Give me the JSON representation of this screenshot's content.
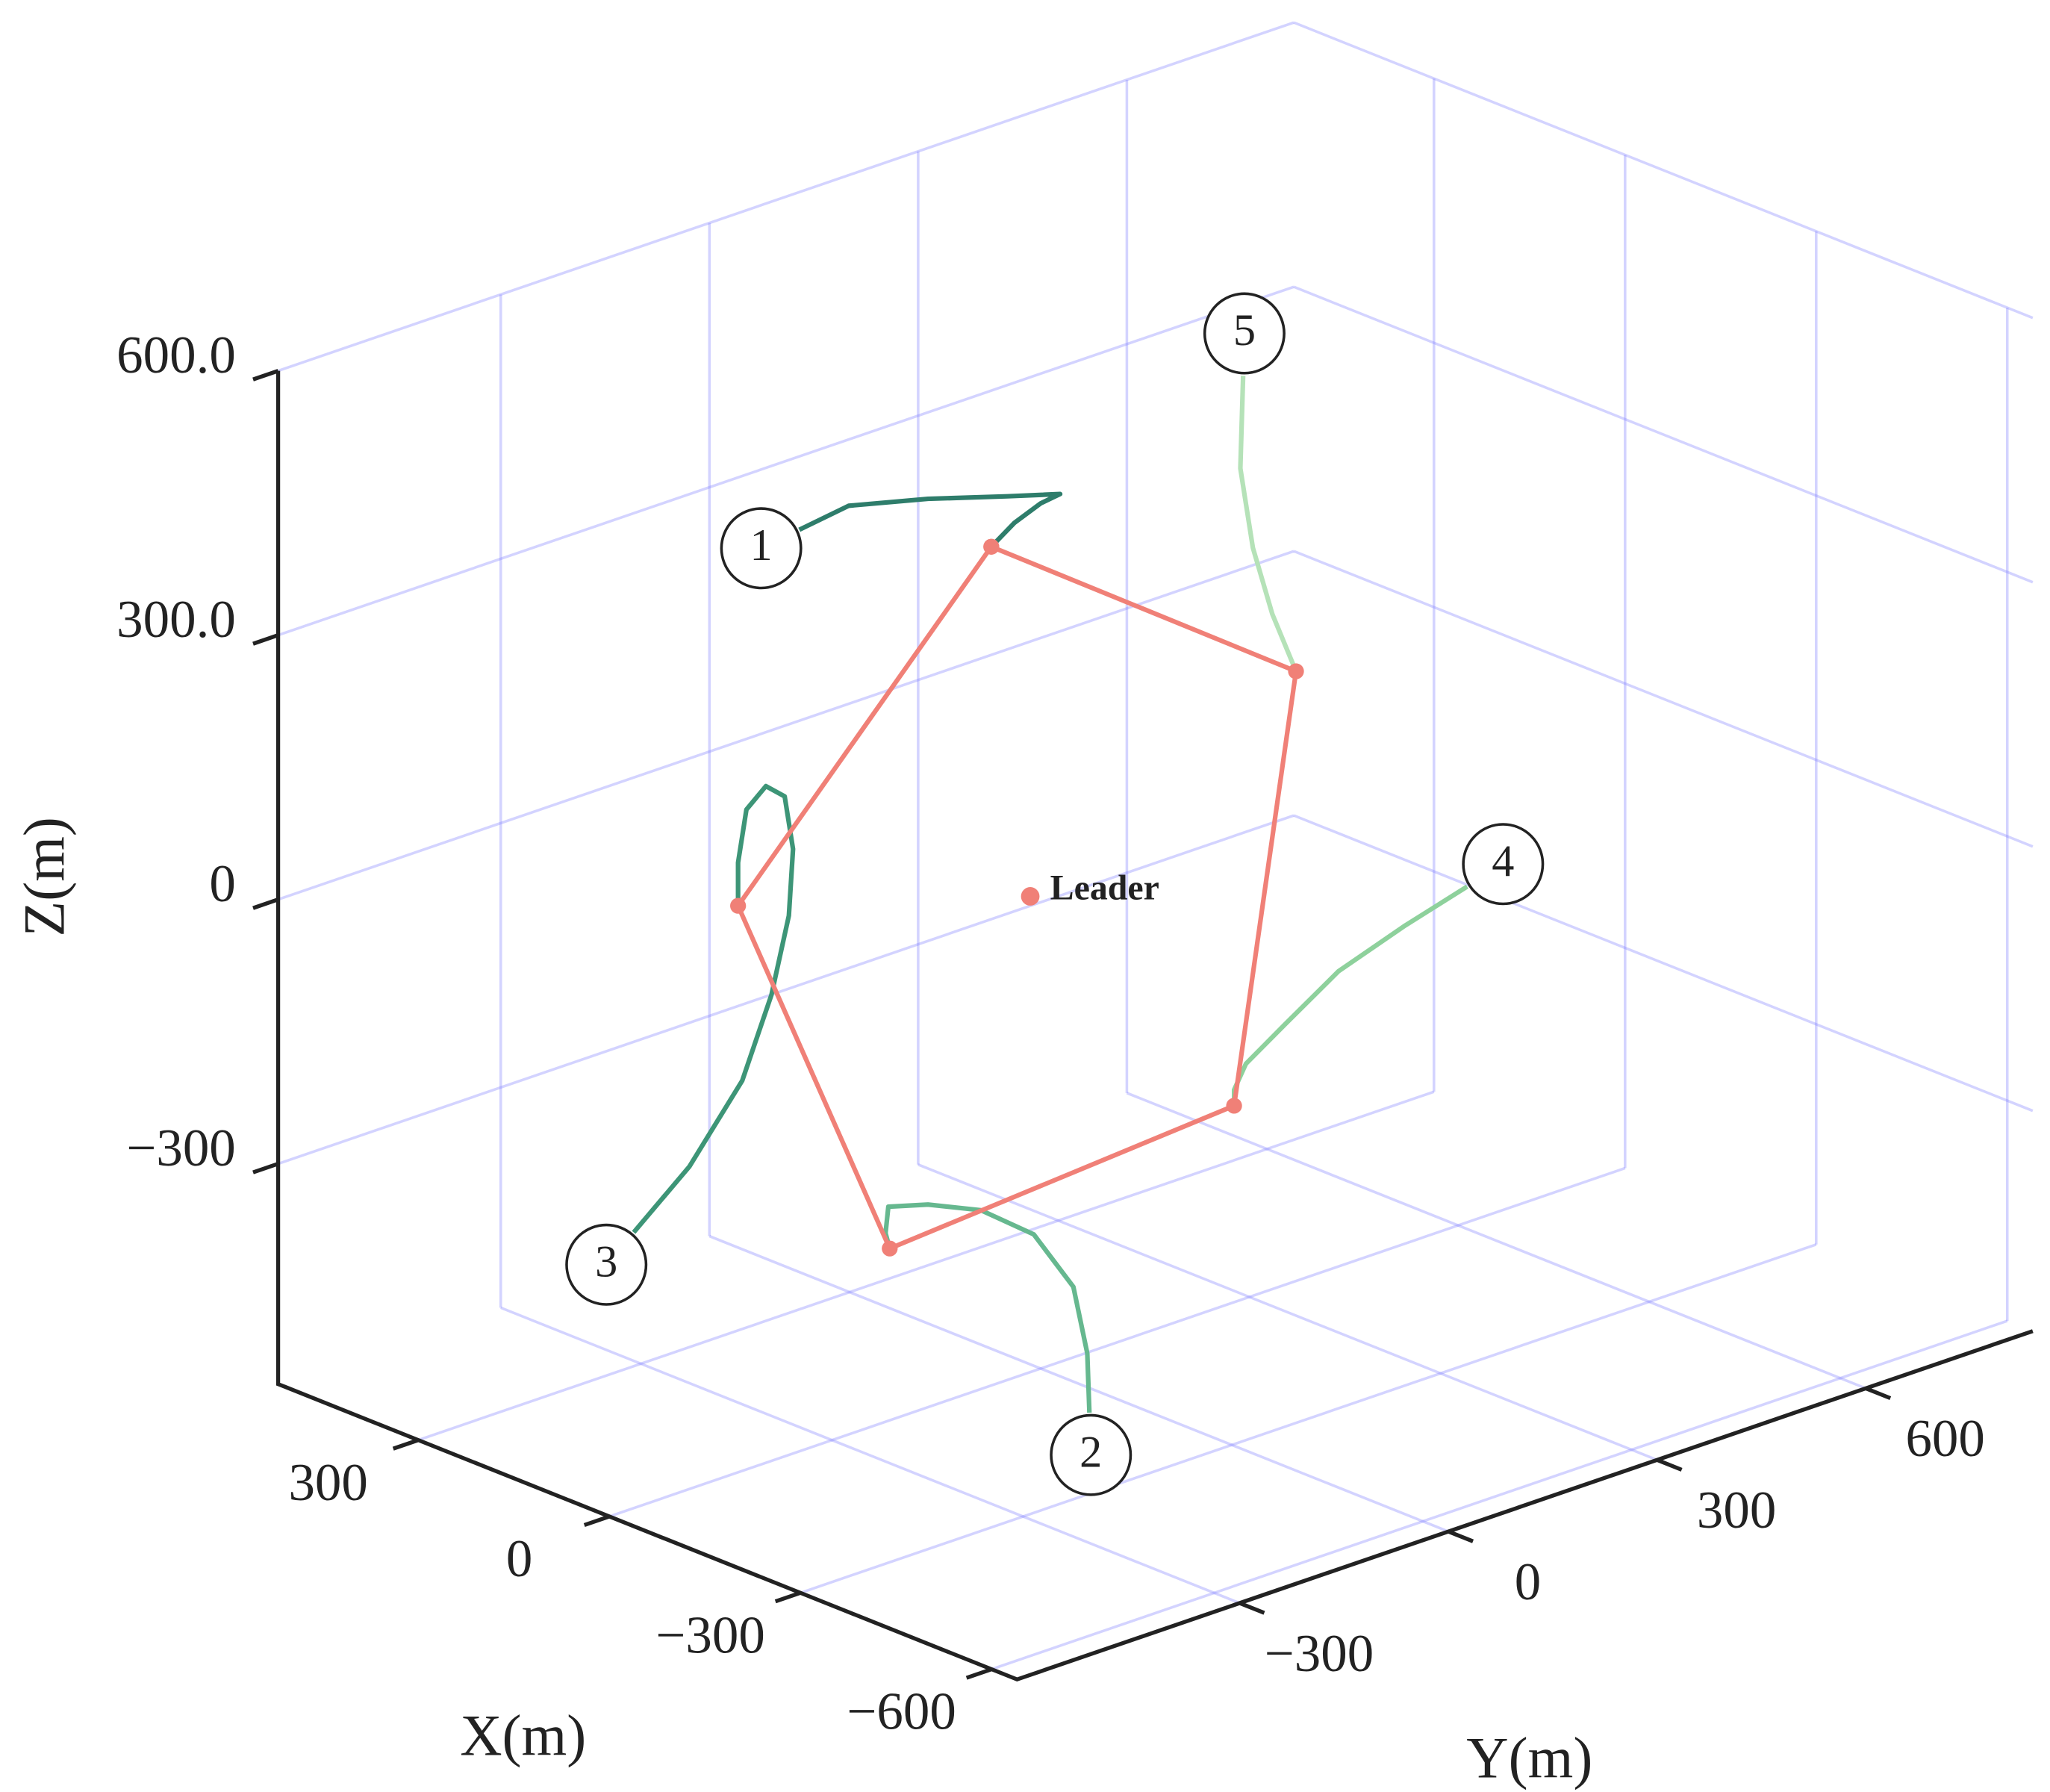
{
  "chart_data": {
    "type": "line3d",
    "xlabel": "X(m)",
    "ylabel": "Y(m)",
    "zlabel": "Z(m)",
    "xlim": [
      -640,
      520
    ],
    "ylim": [
      -620,
      840
    ],
    "zlim": [
      -550,
      600
    ],
    "xticks": [
      {
        "value": -600,
        "label": "−600"
      },
      {
        "value": -300,
        "label": "−300"
      },
      0,
      300
    ],
    "yticks": [
      {
        "value": -300,
        "label": "−300"
      },
      0,
      300,
      600
    ],
    "zticks": [
      {
        "value": -300,
        "label": "−300"
      },
      0,
      {
        "value": 300,
        "label": "300.0"
      },
      {
        "value": 600,
        "label": "600.0"
      }
    ],
    "grid": true,
    "grid_color": "#8080ff",
    "series": [
      {
        "name": "1",
        "color": "#2e7d6b",
        "x": [
          0,
          0,
          0,
          0,
          0,
          0,
          0,
          0
        ],
        "y": [
          -347,
          -276,
          -162,
          -48,
          28,
          0,
          -38,
          -71
        ],
        "z": [
          496,
          504,
          481,
          453,
          435,
          432,
          420,
          402
        ]
      },
      {
        "name": "2",
        "color": "#66b88f",
        "x": [
          0,
          0,
          0,
          0,
          0,
          0,
          0,
          0,
          0
        ],
        "y": [
          70,
          67,
          47,
          -10,
          -86,
          -162,
          -219,
          -223,
          -217
        ],
        "z": [
          -619,
          -551,
          -470,
          -395,
          -347,
          -320,
          -307,
          -336,
          -355
        ]
      },
      {
        "name": "3",
        "color": "#3d9577",
        "x": [
          0,
          0,
          0,
          0,
          0,
          0,
          0,
          0,
          0,
          0,
          0
        ],
        "y": [
          -585,
          -505,
          -429,
          -387,
          -362,
          -356,
          -368,
          -395,
          -423,
          -435,
          -435
        ],
        "z": [
          -237,
          -184,
          -107,
          -21,
          62,
          136,
          199,
          218,
          199,
          142,
          93
        ]
      },
      {
        "name": "4",
        "color": "#8ed19c",
        "x": [
          0,
          0,
          0,
          0,
          0,
          0,
          0
        ],
        "y": [
          613,
          524,
          428,
          352,
          295,
          278,
          278
        ],
        "z": [
          -169,
          -189,
          -215,
          -254,
          -284,
          -309,
          -327
        ]
      },
      {
        "name": "5",
        "color": "#b5e2b8",
        "x": [
          0,
          0,
          0,
          0,
          0
        ],
        "y": [
          291,
          287,
          305,
          333,
          367
        ],
        "z": [
          498,
          394,
          299,
          216,
          142
        ]
      }
    ],
    "formation": {
      "color": "#f08077",
      "x": [
        0,
        0,
        0,
        0,
        0,
        0
      ],
      "y": [
        -71,
        367,
        278,
        -217,
        -435,
        -71
      ],
      "z": [
        402,
        142,
        -327,
        -355,
        93,
        402
      ]
    },
    "leader": {
      "label": "Leader",
      "color": "#f08077",
      "x": 0,
      "y": -15,
      "z": -10
    }
  }
}
